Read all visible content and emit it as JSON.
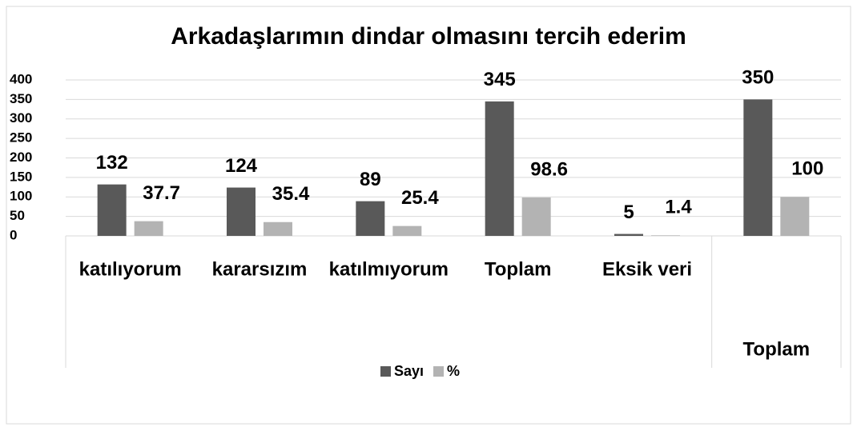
{
  "chart_data": {
    "type": "bar",
    "title": "Arkadaşlarımın dindar olmasını tercih ederim",
    "categories": [
      "katılıyorum",
      "kararsızım",
      "katılmıyorum",
      "Toplam",
      "Eksik veri",
      null
    ],
    "category_groups": [
      {
        "label": null,
        "size": 5
      },
      {
        "label": "Toplam",
        "size": 1
      }
    ],
    "series": [
      {
        "name": "Sayı",
        "color": "#595959",
        "values": [
          132,
          124,
          89,
          345,
          5,
          350
        ]
      },
      {
        "name": "%",
        "color": "#b3b3b3",
        "values": [
          37.7,
          35.4,
          25.4,
          98.6,
          1.4,
          100
        ]
      }
    ],
    "ylim": [
      0,
      400
    ],
    "yticks": [
      0,
      50,
      100,
      150,
      200,
      250,
      300,
      350,
      400
    ],
    "grid": true,
    "legend": "bottom"
  }
}
